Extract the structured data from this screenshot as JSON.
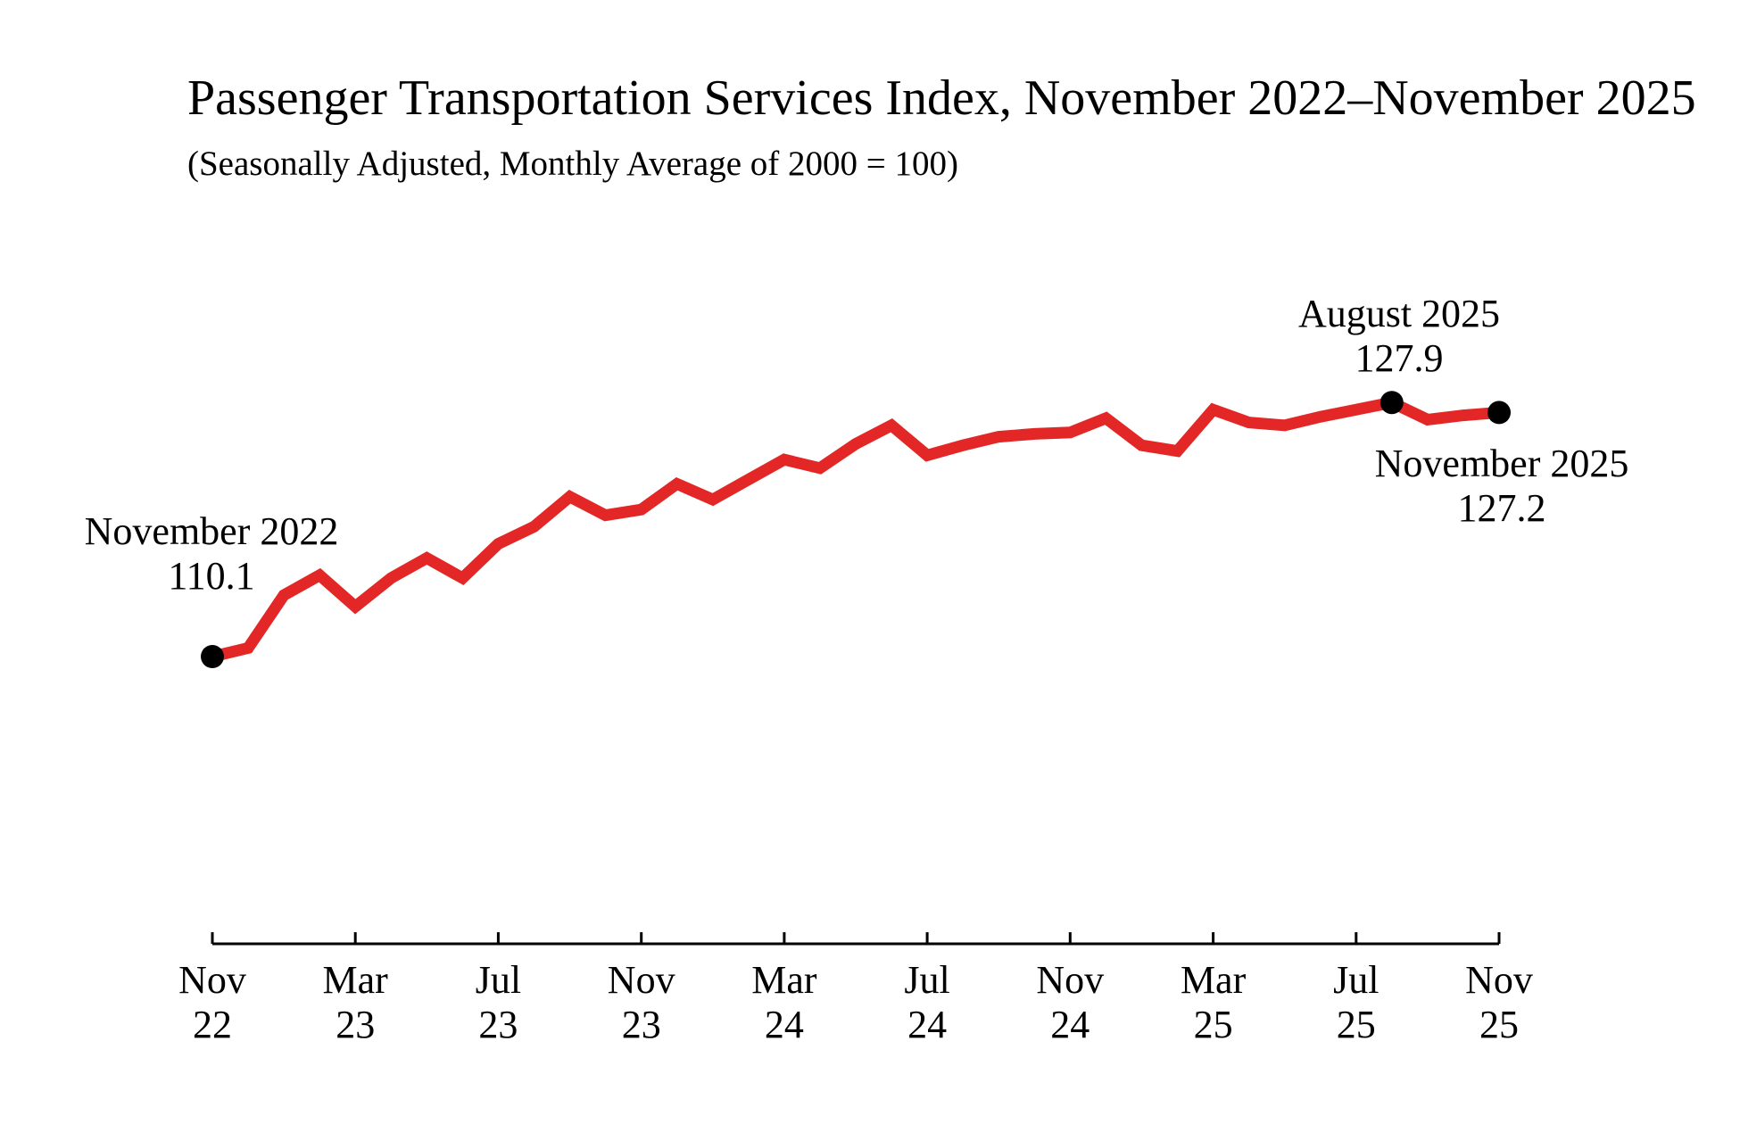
{
  "title": "Passenger Transportation Services Index, November 2022–November 2025",
  "subtitle": "(Seasonally Adjusted, Monthly Average of 2000 = 100)",
  "colors": {
    "line": "#e32726",
    "marker": "#000000",
    "axis": "#000000",
    "background": "#ffffff",
    "text": "#000000"
  },
  "annotations": [
    {
      "label": "November 2022",
      "value": "110.1",
      "month_index": 0,
      "placement": "above-point"
    },
    {
      "label": "August 2025",
      "value": "127.9",
      "month_index": 33,
      "placement": "above-point"
    },
    {
      "label": "November 2025",
      "value": "127.2",
      "month_index": 36,
      "placement": "below-point"
    }
  ],
  "chart_data": {
    "type": "line",
    "series_name": "Passenger Transportation Services Index",
    "x": [
      "Nov 2022",
      "Dec 2022",
      "Jan 2023",
      "Feb 2023",
      "Mar 2023",
      "Apr 2023",
      "May 2023",
      "Jun 2023",
      "Jul 2023",
      "Aug 2023",
      "Sep 2023",
      "Oct 2023",
      "Nov 2023",
      "Dec 2023",
      "Jan 2024",
      "Feb 2024",
      "Mar 2024",
      "Apr 2024",
      "May 2024",
      "Jun 2024",
      "Jul 2024",
      "Aug 2024",
      "Sep 2024",
      "Oct 2024",
      "Nov 2024",
      "Dec 2024",
      "Jan 2025",
      "Feb 2025",
      "Mar 2025",
      "Apr 2025",
      "May 2025",
      "Jun 2025",
      "Jul 2025",
      "Aug 2025",
      "Sep 2025",
      "Oct 2025",
      "Nov 2025"
    ],
    "values": [
      110.1,
      110.7,
      114.4,
      115.8,
      113.6,
      115.6,
      117.0,
      115.6,
      118.0,
      119.2,
      121.3,
      120.0,
      120.4,
      122.2,
      121.1,
      122.5,
      123.9,
      123.3,
      125.0,
      126.3,
      124.2,
      124.9,
      125.5,
      125.7,
      125.8,
      126.8,
      124.9,
      124.5,
      127.4,
      126.5,
      126.3,
      126.9,
      127.4,
      127.9,
      126.7,
      127.0,
      127.2
    ],
    "marked_points": [
      {
        "x": "Nov 2022",
        "value": 110.1
      },
      {
        "x": "Aug 2025",
        "value": 127.9
      },
      {
        "x": "Nov 2025",
        "value": 127.2
      }
    ],
    "x_ticks": [
      {
        "month": "Nov",
        "year": "22"
      },
      {
        "month": "Mar",
        "year": "23"
      },
      {
        "month": "Jul",
        "year": "23"
      },
      {
        "month": "Nov",
        "year": "23"
      },
      {
        "month": "Mar",
        "year": "24"
      },
      {
        "month": "Jul",
        "year": "24"
      },
      {
        "month": "Nov",
        "year": "24"
      },
      {
        "month": "Mar",
        "year": "25"
      },
      {
        "month": "Jul",
        "year": "25"
      },
      {
        "month": "Nov",
        "year": "25"
      }
    ],
    "tick_interval_months": 4,
    "xlabel": "",
    "ylabel": "",
    "ylim": [
      108,
      130
    ],
    "y_axis_visible": false,
    "grid": false,
    "legend": false
  }
}
